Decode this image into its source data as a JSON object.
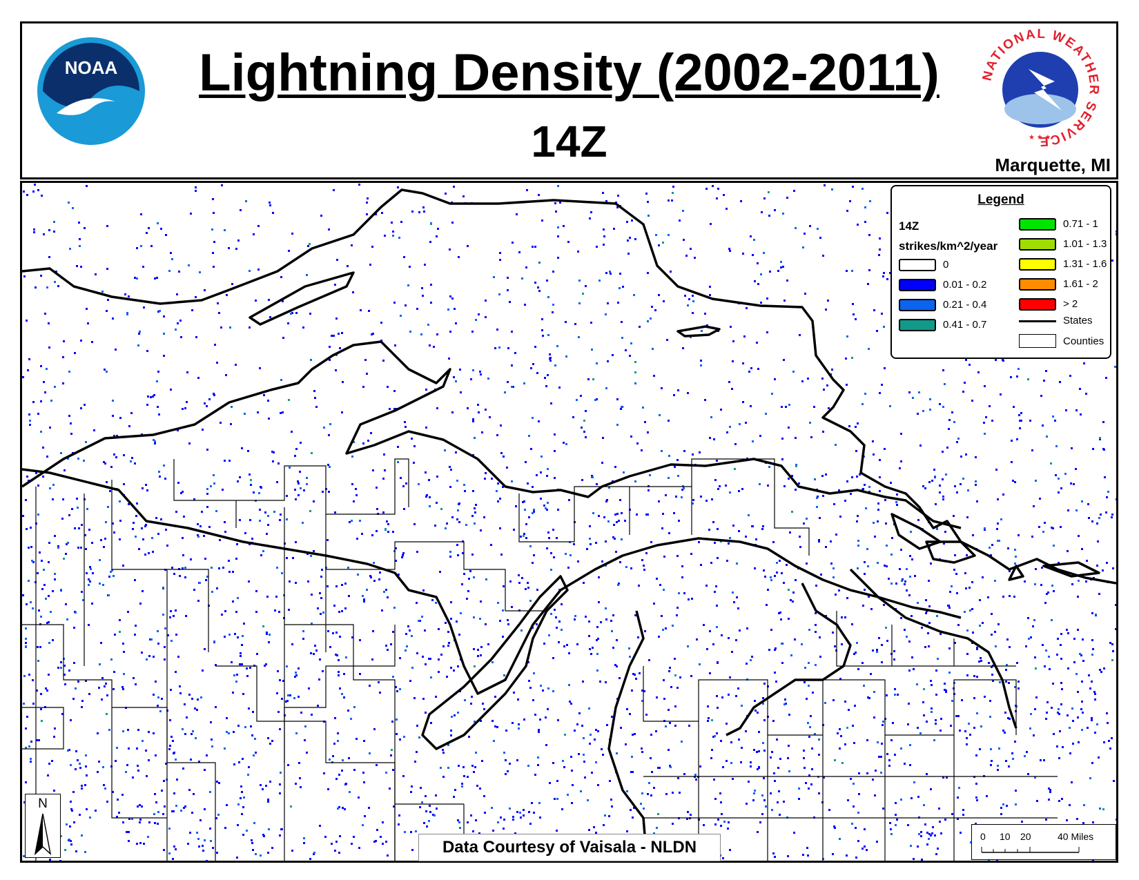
{
  "header": {
    "title": "Lightning Density (2002-2011)",
    "subtitle": "14Z",
    "office": "Marquette, MI",
    "left_logo": "NOAA",
    "right_logo_ring": "NATIONAL WEATHER SERVICE"
  },
  "legend": {
    "title": "Legend",
    "time": "14Z",
    "unit": "strikes/km^2/year",
    "classes": [
      {
        "label": "0",
        "color": "#ffffff"
      },
      {
        "label": "0.01 - 0.2",
        "color": "#0000ff"
      },
      {
        "label": "0.21 - 0.4",
        "color": "#0a64ee"
      },
      {
        "label": "0.41 - 0.7",
        "color": "#11998a"
      },
      {
        "label": "0.71 - 1",
        "color": "#00e400"
      },
      {
        "label": "1.01 - 1.3",
        "color": "#9fdd00"
      },
      {
        "label": "1.31 - 1.6",
        "color": "#ffff00"
      },
      {
        "label": "1.61 - 2",
        "color": "#ff8c00"
      },
      {
        "label": "> 2",
        "color": "#ff0000"
      }
    ],
    "states_label": "States",
    "counties_label": "Counties"
  },
  "map": {
    "north_label": "N",
    "credit": "Data Courtesy of Vaisala - NLDN",
    "scale_labels": [
      "0",
      "10",
      "20",
      "40 Miles"
    ]
  }
}
